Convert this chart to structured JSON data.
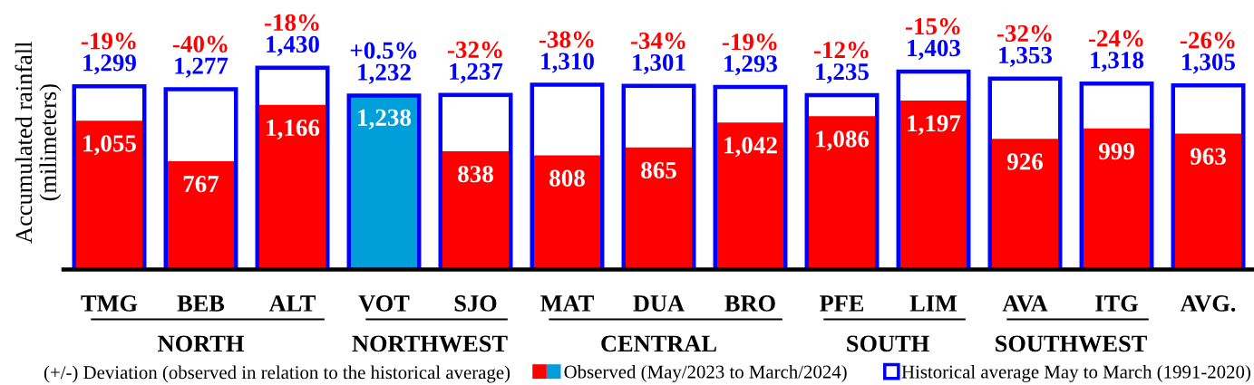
{
  "chart_data": {
    "type": "bar",
    "ylabel": "Accumulated rainfall\n(milimeters)",
    "categories": [
      "TMG",
      "BEB",
      "ALT",
      "VOT",
      "SJO",
      "MAT",
      "DUA",
      "BRO",
      "PFE",
      "LIM",
      "AVA",
      "ITG",
      "AVG."
    ],
    "series": [
      {
        "name": "Observed (May/2023 to March/2024)",
        "color": "#ff0000",
        "colors": [
          "#ff0000",
          "#ff0000",
          "#ff0000",
          "#009fda",
          "#ff0000",
          "#ff0000",
          "#ff0000",
          "#ff0000",
          "#ff0000",
          "#ff0000",
          "#ff0000",
          "#ff0000",
          "#ff0000"
        ],
        "values": [
          1055,
          767,
          1166,
          1238,
          838,
          808,
          865,
          1042,
          1086,
          1197,
          926,
          999,
          963
        ],
        "value_labels": [
          "1,055",
          "767",
          "1,166",
          "1,238",
          "838",
          "808",
          "865",
          "1,042",
          "1,086",
          "1,197",
          "926",
          "999",
          "963"
        ]
      },
      {
        "name": "Historical average May to March (1991-2020)",
        "color": "#0000ff",
        "values": [
          1299,
          1277,
          1430,
          1232,
          1237,
          1310,
          1301,
          1293,
          1235,
          1403,
          1353,
          1318,
          1305
        ],
        "value_labels": [
          "1,299",
          "1,277",
          "1,430",
          "1,232",
          "1,237",
          "1,310",
          "1,301",
          "1,293",
          "1,235",
          "1,403",
          "1,353",
          "1,318",
          "1,305"
        ]
      }
    ],
    "legend": "bottom",
    "tick_labels": "x",
    "annotations": [
      {
        "text": "-19%",
        "x": "TMG",
        "y": 1299
      },
      {
        "text": "-40%",
        "x": "BEB",
        "y": 1277
      },
      {
        "text": "-18%",
        "x": "ALT",
        "y": 1430
      },
      {
        "text": "+0.5%",
        "x": "VOT",
        "y": 1232
      },
      {
        "text": "-32%",
        "x": "SJO",
        "y": 1237
      },
      {
        "text": "-38%",
        "x": "MAT",
        "y": 1310
      },
      {
        "text": "-34%",
        "x": "DUA",
        "y": 1301
      },
      {
        "text": "-19%",
        "x": "BRO",
        "y": 1293
      },
      {
        "text": "-12%",
        "x": "PFE",
        "y": 1235
      },
      {
        "text": "-15%",
        "x": "LIM",
        "y": 1403
      },
      {
        "text": "-32%",
        "x": "AVA",
        "y": 1353
      },
      {
        "text": "-24%",
        "x": "ITG",
        "y": 1318
      },
      {
        "text": "-26%",
        "x": "AVG.",
        "y": 1305
      },
      "NORTH",
      "NORTHWEST",
      "CENTRAL",
      "SOUTH",
      "SOUTHWEST",
      "(+/-) Deviation (observed in relation to the historical average)"
    ]
  }
}
